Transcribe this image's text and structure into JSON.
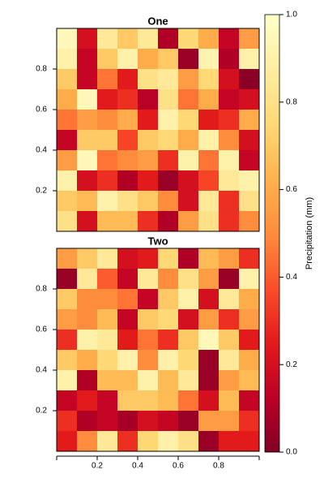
{
  "chart_data": {
    "type": "heatmap",
    "xlim": [
      0,
      1
    ],
    "xticks": [
      0.2,
      0.4,
      0.6,
      0.8
    ],
    "colormap": [
      "#800026",
      "#bd0026",
      "#e31a1c",
      "#fc4e2a",
      "#fd8d3c",
      "#feb24c",
      "#fed976",
      "#ffeda0",
      "#ffffcc"
    ],
    "colorbar": {
      "label": "Precipitation (mm)",
      "lim": [
        0,
        1
      ],
      "ticks": [
        {
          "value": 0,
          "label": "0.0"
        },
        0.2,
        0.4,
        0.6,
        0.8,
        {
          "value": 1,
          "label": "1.0"
        }
      ]
    },
    "panels": [
      {
        "title": "One",
        "ylim": [
          0,
          1
        ],
        "yticks": [
          0.2,
          0.4,
          0.6,
          0.8
        ],
        "values": [
          [
            0.95,
            0.2,
            0.85,
            0.7,
            0.85,
            0.1,
            0.75,
            0.6,
            0.15,
            0.55
          ],
          [
            0.9,
            0.15,
            0.7,
            0.9,
            0.6,
            0.7,
            0.05,
            0.92,
            0.1,
            0.9
          ],
          [
            0.7,
            0.15,
            0.45,
            0.25,
            0.8,
            0.85,
            0.55,
            0.75,
            0.2,
            0.02
          ],
          [
            0.6,
            0.95,
            0.25,
            0.3,
            0.12,
            0.8,
            0.45,
            0.6,
            0.15,
            0.2
          ],
          [
            0.45,
            0.55,
            0.5,
            0.6,
            0.25,
            0.9,
            0.75,
            0.25,
            0.3,
            0.6
          ],
          [
            0.15,
            0.7,
            0.7,
            0.35,
            0.7,
            0.75,
            0.6,
            0.9,
            0.5,
            0.2
          ],
          [
            0.55,
            0.95,
            0.45,
            0.5,
            0.55,
            0.3,
            0.9,
            0.45,
            0.9,
            0.15
          ],
          [
            0.9,
            0.2,
            0.3,
            0.1,
            0.25,
            0.05,
            0.2,
            0.35,
            0.85,
            0.9
          ],
          [
            0.7,
            0.65,
            0.9,
            0.8,
            0.7,
            0.5,
            0.2,
            0.85,
            0.3,
            0.8
          ],
          [
            0.8,
            0.2,
            0.65,
            0.65,
            0.3,
            0.1,
            0.55,
            0.8,
            0.3,
            0.5
          ]
        ]
      },
      {
        "title": "Two",
        "ylim": [
          0,
          1
        ],
        "yticks": [
          0.2,
          0.4,
          0.6,
          0.8
        ],
        "values": [
          [
            0.55,
            0.7,
            0.85,
            0.2,
            0.25,
            0.75,
            0.1,
            0.65,
            0.55,
            0.3
          ],
          [
            0.05,
            0.85,
            0.4,
            0.15,
            0.85,
            0.5,
            0.8,
            0.55,
            0.05,
            0.9
          ],
          [
            0.7,
            0.5,
            0.5,
            0.45,
            0.15,
            0.7,
            0.9,
            0.2,
            0.85,
            0.6
          ],
          [
            0.55,
            0.5,
            0.65,
            0.15,
            0.7,
            0.75,
            0.2,
            0.55,
            0.3,
            0.55
          ],
          [
            0.3,
            0.9,
            0.85,
            0.25,
            0.45,
            0.3,
            0.7,
            0.95,
            0.7,
            0.25
          ],
          [
            0.7,
            0.6,
            0.75,
            0.9,
            0.5,
            0.9,
            0.75,
            0.05,
            0.85,
            0.6
          ],
          [
            0.9,
            0.1,
            0.65,
            0.65,
            0.9,
            0.65,
            0.85,
            0.05,
            0.55,
            0.65
          ],
          [
            0.15,
            0.25,
            0.15,
            0.7,
            0.7,
            0.65,
            0.45,
            0.2,
            0.65,
            0.15
          ],
          [
            0.3,
            0.1,
            0.15,
            0.08,
            0.2,
            0.15,
            0.05,
            0.55,
            0.55,
            0.3
          ],
          [
            0.25,
            0.5,
            0.85,
            0.3,
            0.75,
            0.9,
            0.8,
            0.05,
            0.25,
            0.25
          ]
        ]
      }
    ]
  }
}
